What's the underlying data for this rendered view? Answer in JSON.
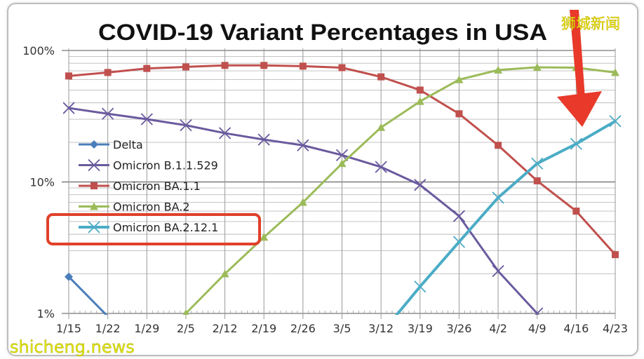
{
  "chart_data": {
    "type": "line",
    "title": "COVID-19 Variant Percentages in USA",
    "xlabel": "",
    "ylabel": "",
    "yscale": "log",
    "ylim": [
      1,
      100
    ],
    "yticks": [
      {
        "value": 1,
        "label": "1%"
      },
      {
        "value": 10,
        "label": "10%"
      },
      {
        "value": 100,
        "label": "100%"
      }
    ],
    "grid": true,
    "legend_position": "left",
    "categories": [
      "1/15",
      "1/22",
      "1/29",
      "2/5",
      "2/12",
      "2/19",
      "2/26",
      "3/5",
      "3/12",
      "3/19",
      "3/26",
      "4/2",
      "4/9",
      "4/16",
      "4/23"
    ],
    "series": [
      {
        "name": "Delta",
        "color": "#4a7ebb",
        "marker": "diamond",
        "values": [
          1.9,
          0.95,
          null,
          null,
          null,
          null,
          null,
          null,
          null,
          null,
          null,
          null,
          null,
          null,
          null
        ]
      },
      {
        "name": "Omicron B.1.1.529",
        "color": "#6a5a9e",
        "marker": "x",
        "values": [
          36.5,
          33,
          30,
          27,
          23.5,
          21,
          19,
          16,
          13,
          9.5,
          5.5,
          2.1,
          1.0,
          null,
          null
        ]
      },
      {
        "name": "Omicron BA.1.1",
        "color": "#c0504d",
        "marker": "square",
        "values": [
          64,
          68,
          73,
          75,
          77,
          77,
          76,
          74,
          63,
          50,
          33,
          19,
          10.2,
          6.0,
          2.8
        ]
      },
      {
        "name": "Omicron BA.2",
        "color": "#9bbb59",
        "marker": "triangle",
        "values": [
          null,
          null,
          null,
          1.0,
          2.0,
          3.8,
          7.0,
          13.8,
          26,
          41,
          60,
          71,
          74.5,
          74,
          68
        ]
      },
      {
        "name": "Omicron BA.2.12.1",
        "color": "#4bacc6",
        "marker": "x",
        "values": [
          null,
          null,
          null,
          null,
          null,
          null,
          null,
          null,
          0.7,
          1.6,
          3.5,
          7.6,
          13.8,
          19.5,
          29
        ]
      }
    ],
    "annotations": {
      "highlight_box_legend_entry": "Omicron BA.2.12.1",
      "highlight_color": "#e0402a",
      "arrow_target": "Omicron BA.2.12.1",
      "arrow_color": "#e8392a"
    }
  },
  "watermarks": {
    "top_right": "狮城新闻",
    "bottom_left": "shicheng.news",
    "color": "#eeee1a"
  }
}
